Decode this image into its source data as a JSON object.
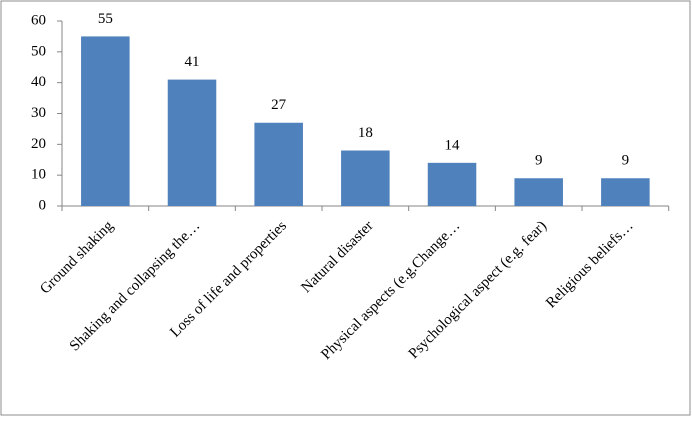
{
  "chart_data": {
    "type": "bar",
    "categories": [
      "Ground shaking",
      "Shaking and collapsing the…",
      "Loss of life and properties",
      "Natural disaster",
      "Physical aspects (e.g.Change…",
      "Psychological aspect (e.g. fear)",
      "Religious beliefs…"
    ],
    "values": [
      55,
      41,
      27,
      18,
      14,
      9,
      9
    ],
    "color": "#4f81bd",
    "ylim": [
      0,
      60
    ],
    "yticks": [
      0,
      10,
      20,
      30,
      40,
      50,
      60
    ],
    "grid": false
  }
}
